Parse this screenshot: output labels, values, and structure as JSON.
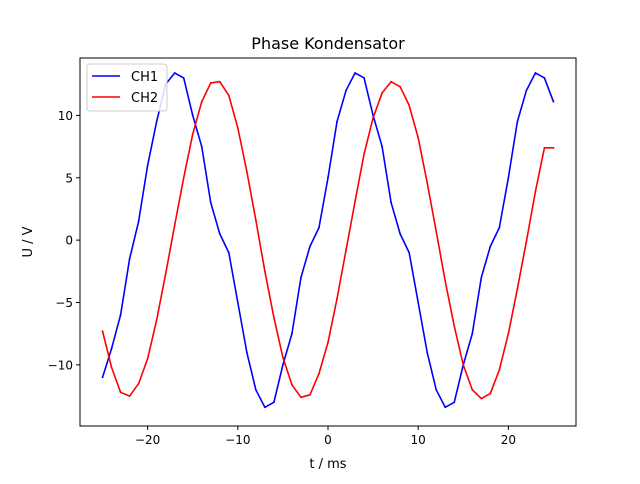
{
  "chart_data": {
    "type": "line",
    "title": "Phase Kondensator",
    "xlabel": "t / ms",
    "ylabel": "U / V",
    "xlim": [
      -27.5,
      27.5
    ],
    "ylim": [
      -14.9,
      14.6
    ],
    "xticks": [
      -20,
      -10,
      0,
      10,
      20
    ],
    "xtick_labels": [
      "−20",
      "−10",
      "0",
      "10",
      "20"
    ],
    "yticks": [
      -10,
      -5,
      0,
      5,
      10
    ],
    "ytick_labels": [
      "−10",
      "−5",
      "0",
      "5",
      "10"
    ],
    "grid": false,
    "legend": "upper-left",
    "series": [
      {
        "name": "CH1",
        "color": "#0000ff",
        "x": [
          -25,
          -24,
          -23,
          -22,
          -21,
          -20,
          -19,
          -18,
          -17,
          -16,
          -15,
          -14,
          -13,
          -12,
          -11,
          -10,
          -9,
          -8,
          -7,
          -6,
          -5,
          -4,
          -3,
          -2,
          -1,
          0,
          1,
          2,
          3,
          4,
          5,
          6,
          7,
          8,
          9,
          10,
          11,
          12,
          13,
          14,
          15,
          16,
          17,
          18,
          19,
          20,
          21,
          22,
          23,
          24,
          25
        ],
        "values": [
          -11.0,
          -8.7,
          -6.0,
          -1.5,
          1.5,
          6.0,
          9.5,
          12.5,
          13.4,
          13.0,
          10.0,
          7.5,
          3.0,
          0.5,
          -1.0,
          -5.0,
          -9.0,
          -12.0,
          -13.4,
          -13.0,
          -10.0,
          -7.5,
          -3.0,
          -0.5,
          1.0,
          5.0,
          9.5,
          12.0,
          13.4,
          13.0,
          10.0,
          7.5,
          3.0,
          0.5,
          -1.0,
          -5.0,
          -9.0,
          -12.0,
          -13.4,
          -13.0,
          -10.0,
          -7.5,
          -3.0,
          -0.5,
          1.0,
          5.0,
          9.5,
          12.0,
          13.4,
          13.0,
          11.1
        ]
      },
      {
        "name": "CH2",
        "color": "#ff0000",
        "x": [
          -25,
          -24,
          -23,
          -22,
          -21,
          -20,
          -19,
          -18,
          -17,
          -16,
          -15,
          -14,
          -13,
          -12,
          -11,
          -10,
          -9,
          -8,
          -7,
          -6,
          -5,
          -4,
          -3,
          -2,
          -1,
          0,
          1,
          2,
          3,
          4,
          5,
          6,
          7,
          8,
          9,
          10,
          11,
          12,
          13,
          14,
          15,
          16,
          17,
          18,
          19,
          20,
          21,
          22,
          23,
          24,
          25
        ],
        "values": [
          -7.3,
          -10.2,
          -12.2,
          -12.5,
          -11.5,
          -9.5,
          -6.4,
          -2.7,
          1.2,
          5.0,
          8.5,
          11.1,
          12.6,
          12.7,
          11.6,
          9.0,
          5.5,
          1.6,
          -2.5,
          -6.2,
          -9.4,
          -11.6,
          -12.6,
          -12.4,
          -10.7,
          -8.2,
          -4.7,
          -0.8,
          3.1,
          6.9,
          9.8,
          11.8,
          12.7,
          12.3,
          10.8,
          8.2,
          4.6,
          0.7,
          -3.3,
          -6.9,
          -10.0,
          -12.0,
          -12.7,
          -12.3,
          -10.4,
          -7.5,
          -3.9,
          -0.1,
          3.9,
          7.4,
          7.4
        ]
      }
    ]
  }
}
